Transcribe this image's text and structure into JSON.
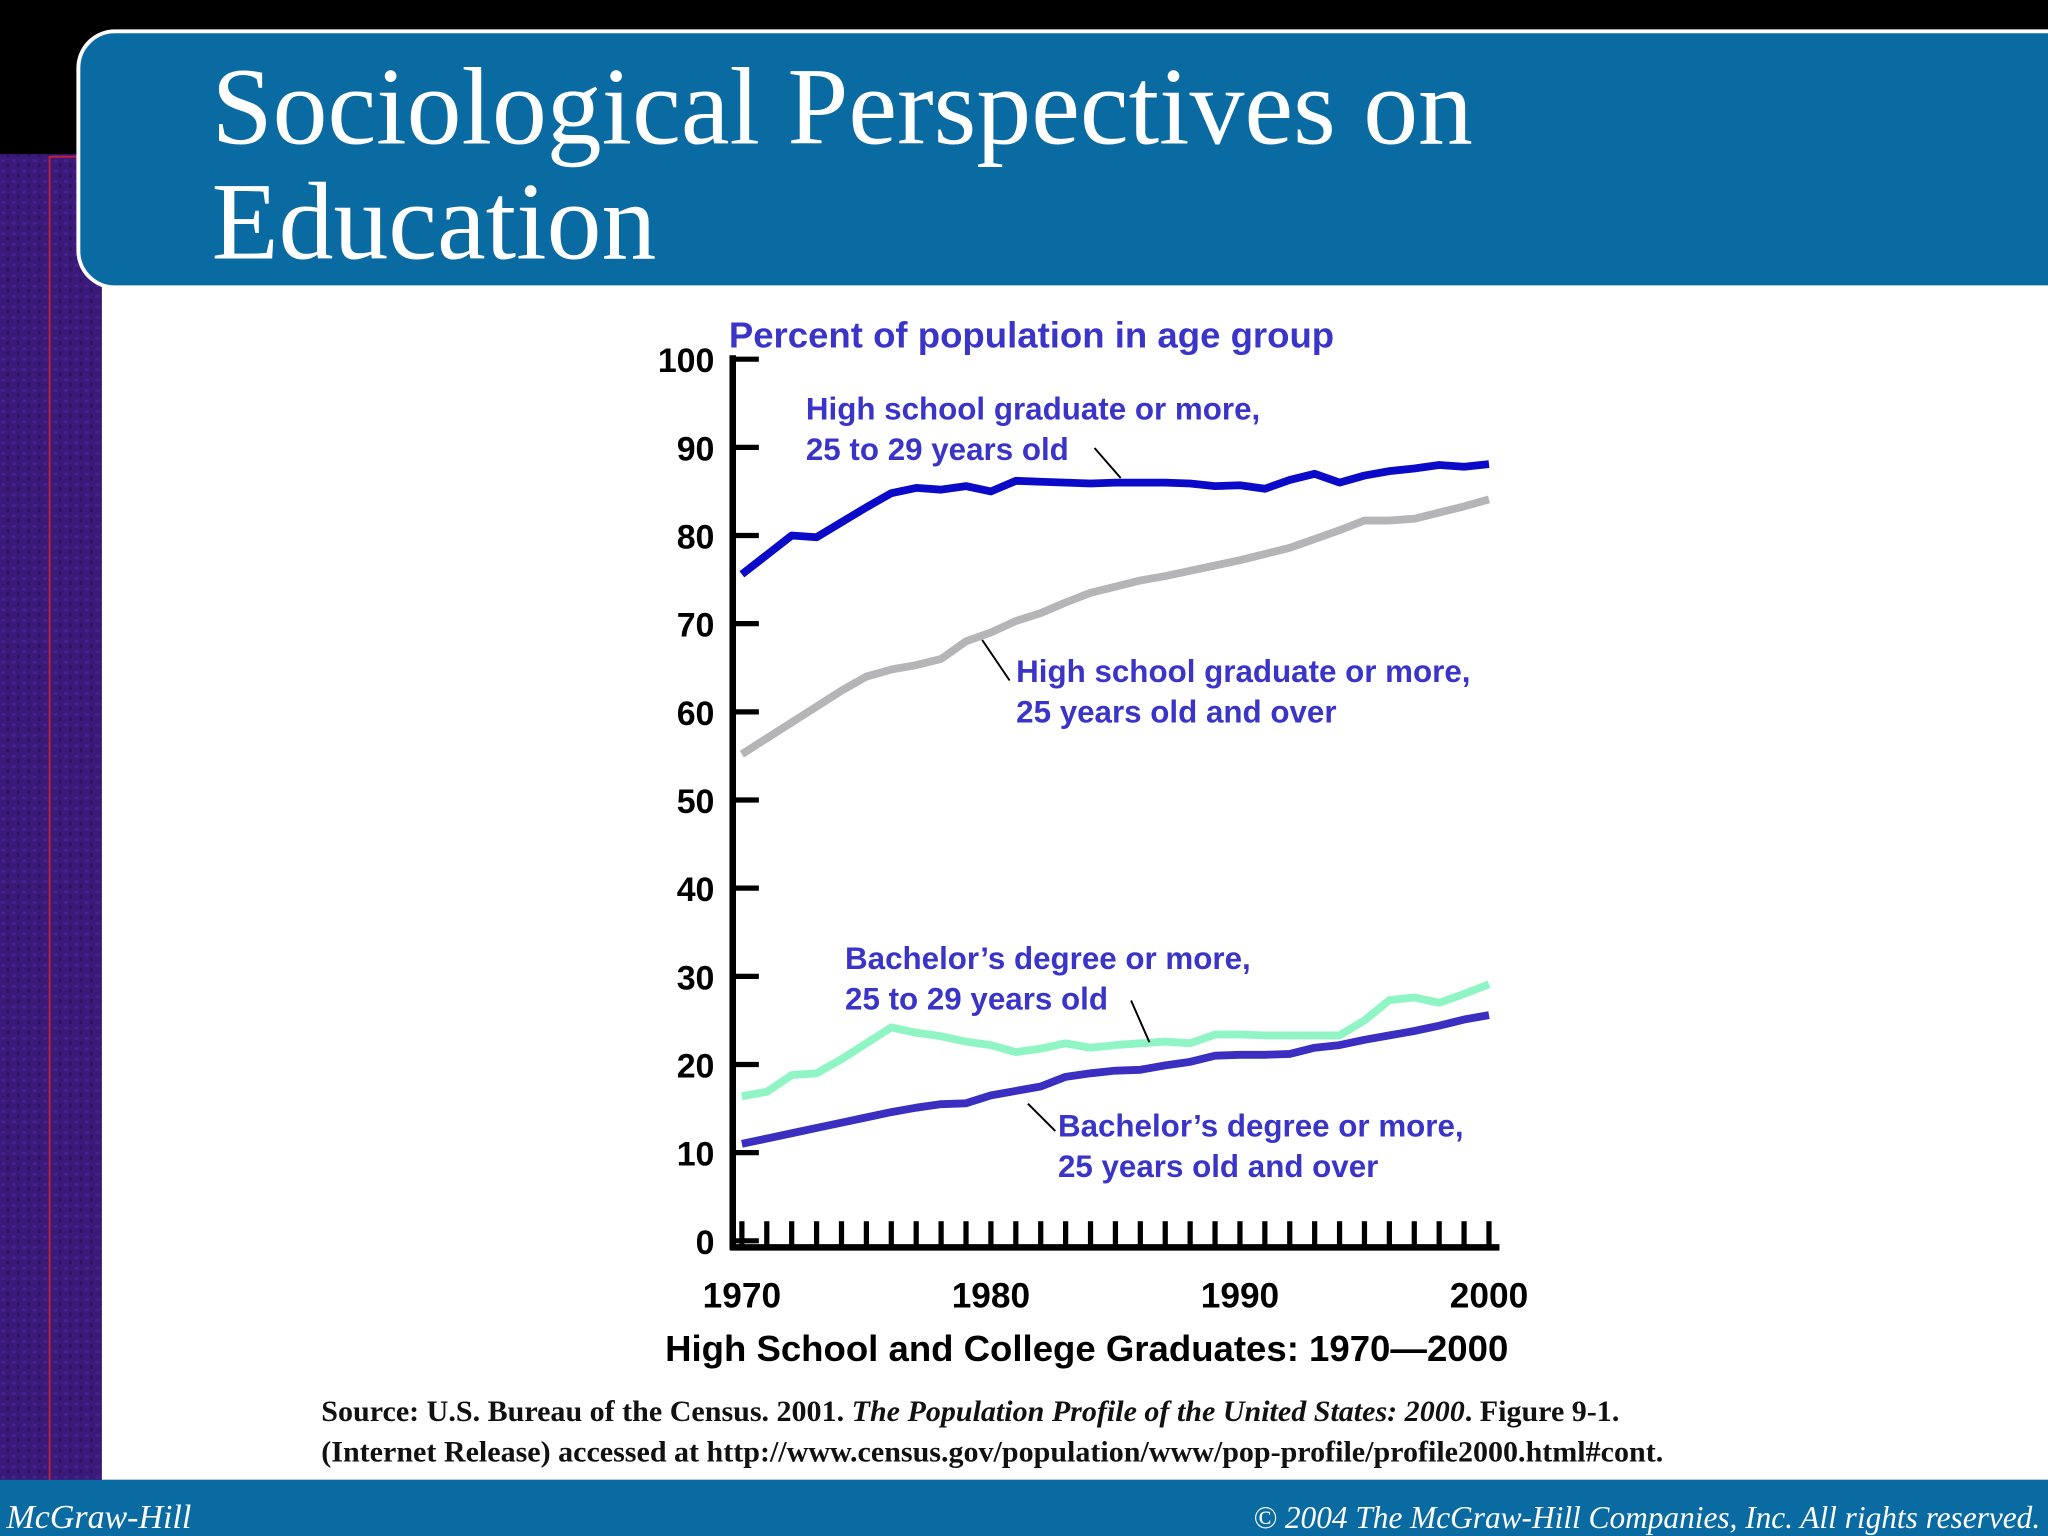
{
  "slide": {
    "title": [
      "Sociological Perspectives on",
      "Education"
    ],
    "source": [
      "Source: U.S. Bureau of the Census. 2001. ",
      "The Population Profile of the United States: 2000",
      ". Figure 9-1.",
      "(Internet Release) accessed at http://www.census.gov/population/www/pop-profile/profile2000.html#cont."
    ],
    "footer_left": "McGraw-Hill",
    "footer_right": "© 2004 The McGraw-Hill Companies, Inc. All rights reserved."
  },
  "chart_data": {
    "type": "line",
    "ylabel": "Percent of population in age group",
    "xlabel": "High School and College Graduates: 1970—2000",
    "x": [
      1970,
      1971,
      1972,
      1973,
      1974,
      1975,
      1976,
      1977,
      1978,
      1979,
      1980,
      1981,
      1982,
      1983,
      1984,
      1985,
      1986,
      1987,
      1988,
      1989,
      1990,
      1991,
      1992,
      1993,
      1994,
      1995,
      1996,
      1997,
      1998,
      1999,
      2000
    ],
    "xlim": [
      1970,
      2000
    ],
    "xticks": [
      1970,
      1980,
      1990,
      2000
    ],
    "ylim": [
      0,
      100
    ],
    "yticks": [
      0,
      10,
      20,
      30,
      40,
      50,
      60,
      70,
      80,
      90,
      100
    ],
    "series": [
      {
        "name": "High school graduate or more, 25 to 29 years old",
        "color": "#0a0ac8",
        "values": [
          75.6,
          77.8,
          80,
          79.8,
          81.5,
          83.2,
          84.8,
          85.4,
          85.2,
          85.6,
          85,
          86.2,
          86.1,
          86,
          85.9,
          86,
          86,
          86,
          85.9,
          85.6,
          85.7,
          85.3,
          86.3,
          87,
          86,
          86.8,
          87.3,
          87.6,
          88,
          87.8,
          88.1
        ]
      },
      {
        "name": "High school graduate or more, 25 years old and over",
        "color": "#b5b5b8",
        "values": [
          55.2,
          57,
          58.8,
          60.6,
          62.4,
          64,
          64.8,
          65.3,
          66,
          68,
          69,
          70.3,
          71.2,
          72.4,
          73.5,
          74.2,
          74.9,
          75.4,
          76,
          76.6,
          77.2,
          77.9,
          78.6,
          79.6,
          80.6,
          81.7,
          81.7,
          81.9,
          82.6,
          83.3,
          84.1
        ]
      },
      {
        "name": "Bachelor’s degree or more, 25 to 29 years old",
        "color": "#8ff5c5",
        "values": [
          16.4,
          16.9,
          18.8,
          19,
          20.6,
          22.4,
          24.2,
          23.6,
          23.2,
          22.6,
          22.2,
          21.4,
          21.8,
          22.4,
          21.9,
          22.2,
          22.4,
          22.6,
          22.4,
          23.4,
          23.4,
          23.3,
          23.3,
          23.3,
          23.3,
          25,
          27.3,
          27.6,
          27,
          28,
          29.1
        ]
      },
      {
        "name": "Bachelor’s degree or more, 25 years old and over",
        "color": "#3a2fc0",
        "values": [
          11,
          11.6,
          12.2,
          12.8,
          13.4,
          14,
          14.6,
          15.1,
          15.5,
          15.6,
          16.5,
          17,
          17.5,
          18.6,
          19,
          19.3,
          19.4,
          19.9,
          20.3,
          21,
          21.1,
          21.1,
          21.2,
          21.9,
          22.2,
          22.8,
          23.3,
          23.8,
          24.4,
          25.1,
          25.6
        ]
      }
    ],
    "annotations": [
      [
        "High school graduate or more,",
        "25 to 29 years old"
      ],
      [
        "High school graduate or more,",
        "25 years old and over"
      ],
      [
        "Bachelor’s degree or more,",
        "25 to 29 years old"
      ],
      [
        "Bachelor’s degree or more,",
        "25 years old and over"
      ]
    ]
  }
}
